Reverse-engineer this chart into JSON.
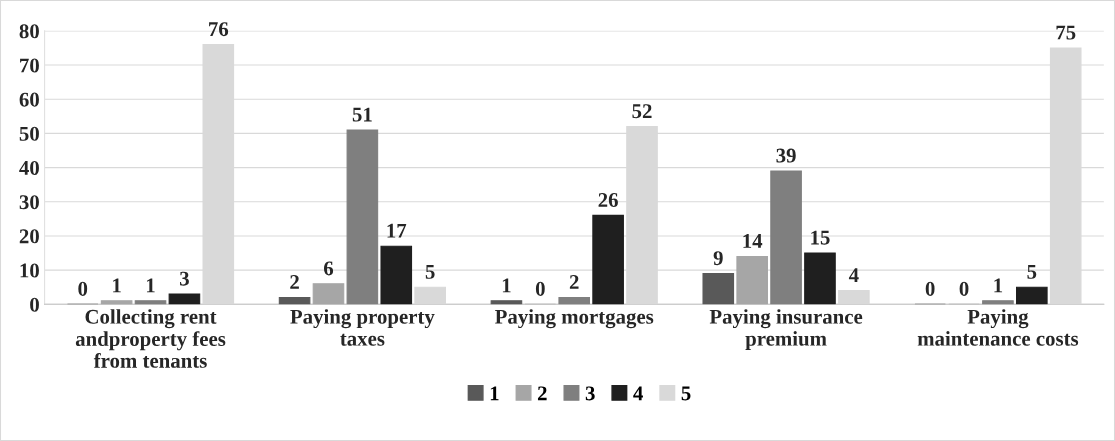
{
  "chart_data": {
    "type": "bar",
    "categories": [
      "Collecting rent\nandproperty fees\nfrom tenants",
      "Paying property\ntaxes",
      "Paying mortgages",
      "Paying insurance\npremium",
      "Paying\nmaintenance costs"
    ],
    "series": [
      {
        "name": "1",
        "color": "#595959",
        "values": [
          0,
          2,
          1,
          9,
          0
        ]
      },
      {
        "name": "2",
        "color": "#a6a6a6",
        "values": [
          1,
          6,
          0,
          14,
          0
        ]
      },
      {
        "name": "3",
        "color": "#7f7f7f",
        "values": [
          1,
          51,
          2,
          39,
          1
        ]
      },
      {
        "name": "4",
        "color": "#1f1f1f",
        "values": [
          3,
          17,
          26,
          15,
          5
        ]
      },
      {
        "name": "5",
        "color": "#d9d9d9",
        "values": [
          76,
          5,
          52,
          4,
          75
        ]
      }
    ],
    "ylim": [
      0,
      80
    ],
    "yticks": [
      0,
      10,
      20,
      30,
      40,
      50,
      60,
      70,
      80
    ],
    "grid": "y",
    "legend": "bottom",
    "data_labels": true
  }
}
